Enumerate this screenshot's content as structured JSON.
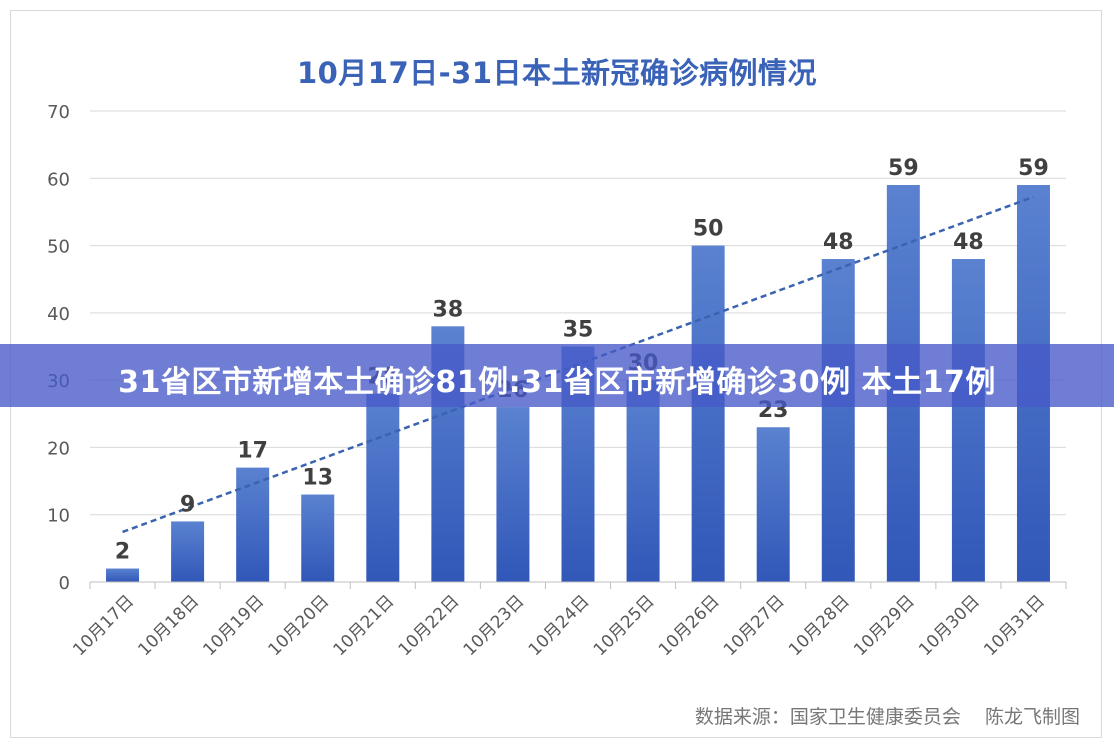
{
  "chart_data": {
    "type": "bar",
    "title": "10月17日-31日本土新冠确诊病例情况",
    "categories": [
      "10月17日",
      "10月18日",
      "10月19日",
      "10月20日",
      "10月21日",
      "10月22日",
      "10月23日",
      "10月24日",
      "10月25日",
      "10月26日",
      "10月27日",
      "10月28日",
      "10月29日",
      "10月30日",
      "10月31日"
    ],
    "values": [
      2,
      9,
      17,
      13,
      28,
      38,
      26,
      35,
      30,
      50,
      23,
      48,
      59,
      48,
      59
    ],
    "data_labels": [
      "2",
      "9",
      "17",
      "13",
      "28",
      "38",
      "26",
      "35",
      "30",
      "50",
      "23",
      "48",
      "59",
      "48",
      "59"
    ],
    "ylim": [
      0,
      70
    ],
    "yticks": [
      0,
      10,
      20,
      30,
      40,
      50,
      60,
      70
    ],
    "trendline": {
      "style": "dashed",
      "type": "linear"
    },
    "grid": true,
    "legend": "none",
    "colors": {
      "bar_top": "#5a82d0",
      "bar_bottom": "#3157b8",
      "trend": "#3a63b0",
      "title": "#3a63b8"
    }
  },
  "source": "数据来源：国家卫生健康委员会    陈龙飞制图",
  "banner": {
    "text": "31省区市新增本土确诊81例:31省区市新增确诊30例 本土17例"
  }
}
